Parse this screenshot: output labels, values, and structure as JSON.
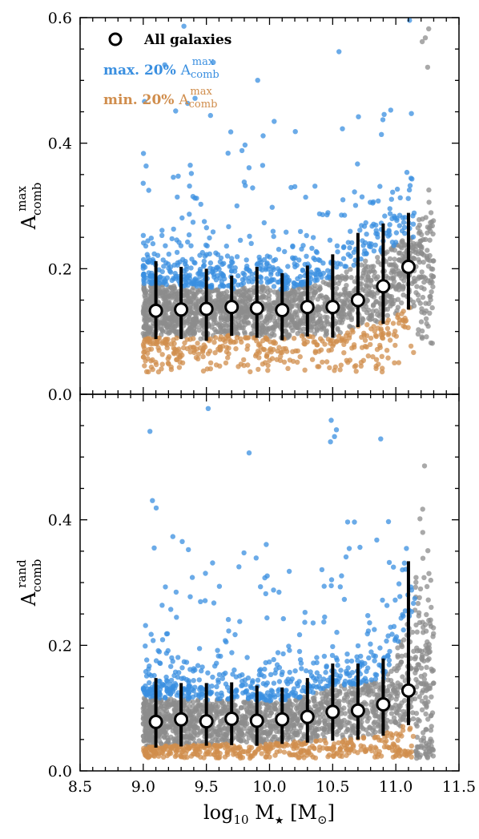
{
  "chart_data": [
    {
      "type": "scatter",
      "panel": "top",
      "ylabel": {
        "main": "A",
        "sup": "max",
        "sub": "comb"
      },
      "xlim": [
        8.5,
        11.5
      ],
      "ylim": [
        0.0,
        0.6
      ],
      "yticks": [
        "0.0",
        "0.2",
        "0.4",
        "0.6"
      ],
      "grid": false,
      "legend": {
        "placement": "top-left",
        "entries": [
          {
            "text": "All galaxies",
            "color": "#000000",
            "marker": "open-circle"
          },
          {
            "text": "max. 20% ",
            "main": "A",
            "sup": "max",
            "sub": "comb",
            "color": "#3a8fe0"
          },
          {
            "text": "min. 20% ",
            "main": "A",
            "sup": "max",
            "sub": "comb",
            "color": "#d08d4c"
          }
        ]
      },
      "colors": {
        "all": "#8c8c8c",
        "max": "#3a8fe0",
        "min": "#d08d4c"
      },
      "binned_medians": {
        "x": [
          9.1,
          9.3,
          9.5,
          9.7,
          9.9,
          10.1,
          10.3,
          10.5,
          10.7,
          10.9,
          11.1
        ],
        "y": [
          0.133,
          0.135,
          0.136,
          0.139,
          0.137,
          0.134,
          0.139,
          0.139,
          0.15,
          0.172,
          0.203
        ],
        "y_low": [
          0.088,
          0.088,
          0.085,
          0.093,
          0.09,
          0.086,
          0.092,
          0.09,
          0.107,
          0.112,
          0.135
        ],
        "y_high": [
          0.212,
          0.203,
          0.2,
          0.189,
          0.203,
          0.193,
          0.205,
          0.223,
          0.257,
          0.272,
          0.289
        ]
      },
      "series": [
        {
          "name": "All galaxies",
          "x_range": [
            9.0,
            11.3
          ],
          "y_range": [
            0.07,
            0.26
          ]
        },
        {
          "name": "max. 20%",
          "x_range": [
            9.0,
            11.15
          ],
          "y_range": [
            0.17,
            0.56
          ]
        },
        {
          "name": "min. 20%",
          "x_range": [
            9.0,
            11.1
          ],
          "y_range": [
            0.03,
            0.11
          ]
        }
      ]
    },
    {
      "type": "scatter",
      "panel": "bottom",
      "xlabel": {
        "pre": "log",
        "sub": "10",
        "mid": " M",
        "star": "★",
        "post": " [M",
        "sun_sub": "⊙",
        "end": "]"
      },
      "ylabel": {
        "main": "A",
        "sup": "rand",
        "sub": "comb"
      },
      "xlim": [
        8.5,
        11.5
      ],
      "ylim": [
        0.0,
        0.6
      ],
      "xticks": [
        "8.5",
        "9.0",
        "9.5",
        "10.0",
        "10.5",
        "11.0",
        "11.5"
      ],
      "yticks": [
        "0.0",
        "0.2",
        "0.4"
      ],
      "grid": false,
      "binned_medians": {
        "x": [
          9.1,
          9.3,
          9.5,
          9.7,
          9.9,
          10.1,
          10.3,
          10.5,
          10.7,
          10.9,
          11.1
        ],
        "y": [
          0.078,
          0.082,
          0.079,
          0.083,
          0.08,
          0.082,
          0.086,
          0.094,
          0.096,
          0.106,
          0.128
        ],
        "y_low": [
          0.037,
          0.039,
          0.04,
          0.041,
          0.04,
          0.043,
          0.045,
          0.048,
          0.05,
          0.056,
          0.073
        ],
        "y_high": [
          0.148,
          0.14,
          0.14,
          0.141,
          0.136,
          0.133,
          0.148,
          0.171,
          0.171,
          0.179,
          0.334
        ]
      },
      "series": [
        {
          "name": "All galaxies",
          "x_range": [
            9.0,
            11.3
          ],
          "y_range": [
            0.03,
            0.19
          ]
        },
        {
          "name": "max. 20%",
          "x_range": [
            9.0,
            11.15
          ],
          "y_range": [
            0.12,
            0.6
          ]
        },
        {
          "name": "min. 20%",
          "x_range": [
            9.0,
            11.1
          ],
          "y_range": [
            0.02,
            0.07
          ]
        }
      ]
    }
  ]
}
